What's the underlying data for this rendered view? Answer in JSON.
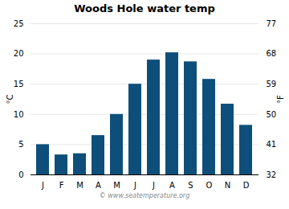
{
  "chart_data": {
    "type": "bar",
    "title": "Woods Hole water temp",
    "categories": [
      "J",
      "F",
      "M",
      "A",
      "M",
      "J",
      "J",
      "A",
      "S",
      "O",
      "N",
      "D"
    ],
    "values": [
      5.0,
      3.3,
      3.5,
      6.5,
      10.0,
      15.0,
      19.0,
      20.2,
      18.7,
      15.8,
      11.7,
      8.2
    ],
    "color": "#0d4f7a",
    "ylim": [
      0,
      25
    ],
    "yticks": [
      0,
      5,
      10,
      15,
      20,
      25
    ],
    "ylabel": "°C",
    "y2lim": [
      32,
      77
    ],
    "y2ticks": [
      32,
      41,
      50,
      59,
      68,
      77
    ],
    "y2label": "°F",
    "grid": true,
    "annotations": [
      "© www.seatemperature.org"
    ]
  }
}
